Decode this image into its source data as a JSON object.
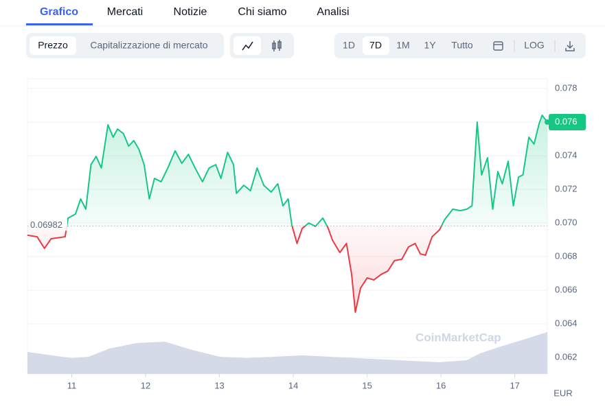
{
  "tabs": [
    "Grafico",
    "Mercati",
    "Notizie",
    "Chi siamo",
    "Analisi"
  ],
  "toggle": [
    "Prezzo",
    "Capitalizzazione di mercato"
  ],
  "ranges": [
    "1D",
    "7D",
    "1M",
    "1Y",
    "Tutto"
  ],
  "log": "LOG",
  "chart_data": {
    "type": "line",
    "price": {
      "x": [
        10.4,
        10.53,
        10.63,
        10.72,
        10.91,
        10.95,
        11.05,
        11.12,
        11.19,
        11.26,
        11.33,
        11.4,
        11.49,
        11.56,
        11.62,
        11.7,
        11.77,
        11.84,
        11.91,
        11.98,
        12.05,
        12.12,
        12.21,
        12.3,
        12.4,
        12.49,
        12.58,
        12.67,
        12.77,
        12.86,
        12.95,
        13.02,
        13.11,
        13.19,
        13.23,
        13.33,
        13.42,
        13.51,
        13.6,
        13.7,
        13.79,
        13.86,
        13.93,
        13.98,
        14.05,
        14.12,
        14.21,
        14.3,
        14.4,
        14.47,
        14.53,
        14.63,
        14.72,
        14.79,
        14.84,
        14.91,
        15.0,
        15.09,
        15.19,
        15.28,
        15.37,
        15.47,
        15.56,
        15.65,
        15.72,
        15.79,
        15.88,
        15.98,
        16.05,
        16.16,
        16.26,
        16.35,
        16.42,
        16.49,
        16.55,
        16.63,
        16.7,
        16.77,
        16.83,
        16.91,
        16.98,
        17.05,
        17.11,
        17.19,
        17.26,
        17.33,
        17.37,
        17.44
      ],
      "values": [
        0.06927,
        0.06918,
        0.06849,
        0.06906,
        0.06918,
        0.07029,
        0.07053,
        0.07143,
        0.07082,
        0.07347,
        0.07396,
        0.07327,
        0.07584,
        0.0751,
        0.07559,
        0.07531,
        0.07457,
        0.0749,
        0.07437,
        0.07347,
        0.07143,
        0.07265,
        0.07245,
        0.07327,
        0.07429,
        0.07355,
        0.07408,
        0.07327,
        0.07245,
        0.07327,
        0.07347,
        0.07265,
        0.0742,
        0.07347,
        0.07176,
        0.07224,
        0.07192,
        0.07327,
        0.07224,
        0.07184,
        0.07233,
        0.07102,
        0.07143,
        0.06988,
        0.06878,
        0.06967,
        0.07,
        0.0698,
        0.07029,
        0.06971,
        0.06898,
        0.06824,
        0.06878,
        0.06694,
        0.06469,
        0.06612,
        0.06673,
        0.06661,
        0.06694,
        0.06714,
        0.06776,
        0.06784,
        0.06857,
        0.06878,
        0.06816,
        0.06808,
        0.06918,
        0.06959,
        0.0702,
        0.07082,
        0.07073,
        0.07082,
        0.07102,
        0.076,
        0.07286,
        0.07388,
        0.07082,
        0.07306,
        0.07233,
        0.07367,
        0.07102,
        0.07273,
        0.07286,
        0.0751,
        0.07469,
        0.07592,
        0.07641,
        0.076
      ],
      "color_up": "#16c784",
      "color_down": "#ea3943"
    },
    "volume": {
      "x": [
        10.4,
        11,
        11.23,
        11.51,
        11.88,
        12.26,
        12.63,
        13,
        13.37,
        13.74,
        14.12,
        14.49,
        14.86,
        15.23,
        15.6,
        15.98,
        16.35,
        16.53,
        16.81,
        17.09,
        17.44
      ],
      "values": [
        32,
        23,
        25,
        37,
        45,
        47,
        35,
        25,
        23,
        25,
        27,
        25,
        23,
        21,
        19,
        17,
        20,
        30,
        40,
        49,
        61
      ],
      "color": "#cfd6e4"
    },
    "vlim": [
      0,
      100
    ],
    "baseline": 0.06982,
    "current_price": 0.076,
    "xlim": [
      10.4,
      17.44
    ],
    "xticks": [
      11,
      12,
      13,
      14,
      15,
      16,
      17
    ],
    "ylim": [
      0.06102,
      0.07857
    ],
    "yticks": [
      0.062,
      0.064,
      0.066,
      0.068,
      {
        "value": 0.07,
        "label": "0.070"
      },
      0.072,
      0.074,
      0.076,
      0.078
    ],
    "grid": true,
    "currency": "EUR",
    "watermark": "CoinMarketCap"
  }
}
